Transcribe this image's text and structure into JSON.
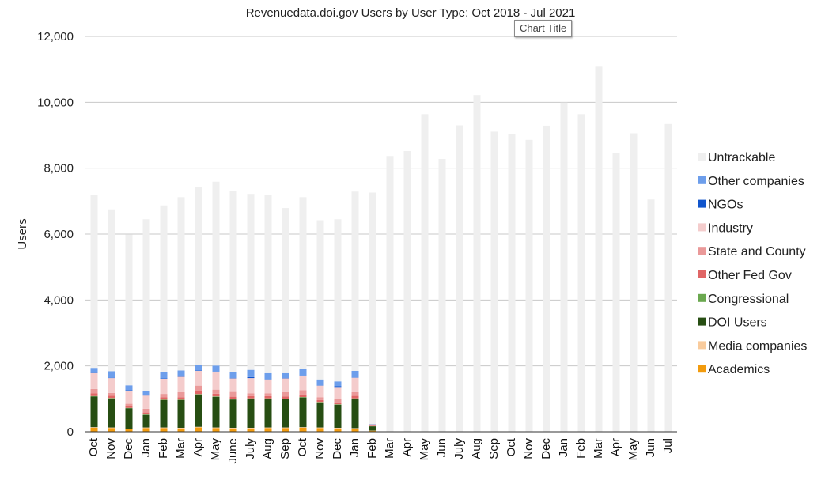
{
  "tooltip": "Chart Title",
  "chart_data": {
    "type": "bar",
    "stacked": true,
    "title": "Revenuedata.doi.gov Users by User Type: Oct 2018 - Jul 2021",
    "xlabel": "",
    "ylabel": "Users",
    "ylim": [
      0,
      12000
    ],
    "yticks": [
      0,
      2000,
      4000,
      6000,
      8000,
      10000,
      12000
    ],
    "ytick_labels": [
      "0",
      "2,000",
      "4,000",
      "6,000",
      "8,000",
      "10,000",
      "12,000"
    ],
    "grid": true,
    "legend_position": "right",
    "categories": [
      "Oct",
      "Nov",
      "Dec",
      "Jan",
      "Feb",
      "Mar",
      "Apr",
      "May",
      "June",
      "July",
      "Aug",
      "Sep",
      "Oct",
      "Nov",
      "Dec",
      "Jan",
      "Feb",
      "Mar",
      "Apr",
      "May",
      "Jun",
      "July",
      "Aug",
      "Sep",
      "Oct",
      "Nov",
      "Dec",
      "Jan",
      "Feb",
      "Mar",
      "Apr",
      "May",
      "Jun",
      "Jul"
    ],
    "series": [
      {
        "name": "Academics",
        "color": "#f29b0e",
        "values": [
          120,
          110,
          80,
          110,
          110,
          100,
          130,
          110,
          100,
          100,
          110,
          110,
          120,
          110,
          100,
          90,
          30,
          0,
          0,
          0,
          0,
          0,
          0,
          0,
          0,
          0,
          0,
          0,
          0,
          0,
          0,
          0,
          0,
          0
        ]
      },
      {
        "name": "Media companies",
        "color": "#f9cb9c",
        "values": [
          20,
          20,
          15,
          20,
          20,
          20,
          20,
          20,
          20,
          20,
          20,
          20,
          20,
          20,
          20,
          20,
          5,
          0,
          0,
          0,
          0,
          0,
          0,
          0,
          0,
          0,
          0,
          0,
          0,
          0,
          0,
          0,
          0,
          0
        ]
      },
      {
        "name": "DOI Users",
        "color": "#274e13",
        "values": [
          930,
          880,
          620,
          380,
          830,
          840,
          980,
          930,
          860,
          880,
          870,
          860,
          900,
          760,
          700,
          890,
          130,
          0,
          0,
          0,
          0,
          0,
          0,
          0,
          0,
          0,
          0,
          0,
          0,
          0,
          0,
          0,
          0,
          0
        ]
      },
      {
        "name": "Congressional",
        "color": "#6aa84f",
        "values": [
          15,
          15,
          10,
          15,
          15,
          15,
          15,
          15,
          15,
          15,
          15,
          15,
          15,
          15,
          15,
          15,
          5,
          0,
          0,
          0,
          0,
          0,
          0,
          0,
          0,
          0,
          0,
          0,
          0,
          0,
          0,
          0,
          0,
          0
        ]
      },
      {
        "name": "Other Fed Gov",
        "color": "#e06666",
        "values": [
          80,
          70,
          50,
          60,
          70,
          75,
          90,
          80,
          70,
          70,
          70,
          70,
          80,
          60,
          60,
          75,
          15,
          0,
          0,
          0,
          0,
          0,
          0,
          0,
          0,
          0,
          0,
          0,
          0,
          0,
          0,
          0,
          0,
          0
        ]
      },
      {
        "name": "State and County",
        "color": "#ea9999",
        "values": [
          135,
          85,
          75,
          115,
          105,
          150,
          165,
          125,
          145,
          85,
          85,
          125,
          125,
          85,
          105,
          110,
          15,
          0,
          0,
          0,
          0,
          0,
          0,
          0,
          0,
          0,
          0,
          0,
          0,
          0,
          0,
          0,
          0,
          0
        ]
      },
      {
        "name": "Industry",
        "color": "#f4cccc",
        "values": [
          480,
          450,
          400,
          400,
          460,
          470,
          450,
          540,
          410,
          460,
          420,
          420,
          440,
          350,
          360,
          440,
          30,
          0,
          0,
          0,
          0,
          0,
          0,
          0,
          0,
          0,
          0,
          0,
          0,
          0,
          0,
          0,
          0,
          0
        ]
      },
      {
        "name": "NGOs",
        "color": "#1155cc",
        "values": [
          10,
          10,
          10,
          10,
          10,
          10,
          10,
          10,
          10,
          30,
          10,
          10,
          10,
          10,
          20,
          10,
          0,
          0,
          0,
          0,
          0,
          0,
          0,
          0,
          0,
          0,
          0,
          0,
          0,
          0,
          0,
          0,
          0,
          0
        ]
      },
      {
        "name": "Other companies",
        "color": "#6d9eeb",
        "values": [
          150,
          200,
          150,
          140,
          190,
          180,
          170,
          180,
          180,
          220,
          180,
          150,
          190,
          180,
          150,
          200,
          10,
          0,
          0,
          0,
          0,
          0,
          0,
          0,
          0,
          0,
          0,
          0,
          0,
          0,
          0,
          0,
          0,
          0
        ]
      },
      {
        "name": "Untrackable",
        "color": "#efefef",
        "values": [
          5260,
          4910,
          4580,
          5200,
          5060,
          5260,
          5400,
          5580,
          5510,
          5340,
          5420,
          5010,
          5220,
          4830,
          4920,
          5440,
          7020,
          8370,
          8520,
          9640,
          8280,
          9300,
          10220,
          9110,
          9030,
          8860,
          9290,
          9990,
          9640,
          11080,
          8450,
          9060,
          7050,
          9340
        ]
      }
    ]
  }
}
